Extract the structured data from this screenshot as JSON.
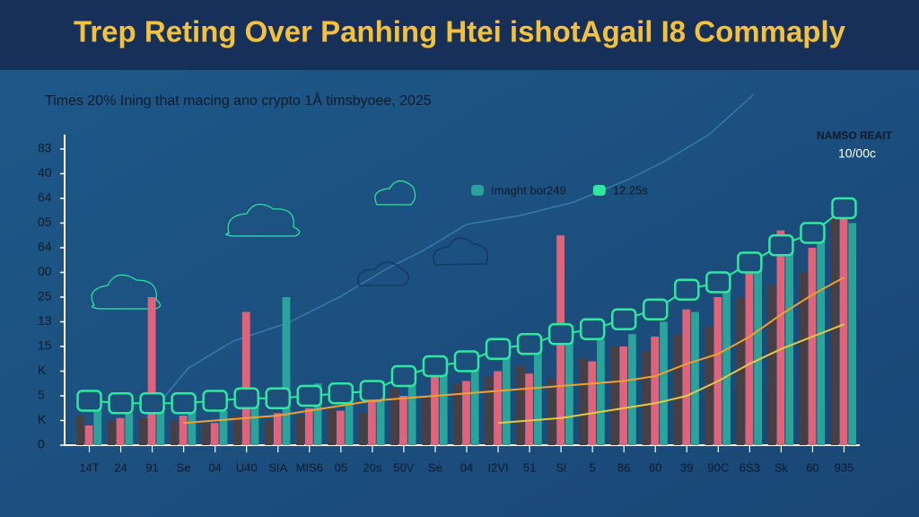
{
  "chart_data": {
    "type": "bar",
    "title": "Trep Reting Over Panhing Htei ishotAgail I8 Commaply",
    "subtitle": "Times 20%  Ining that macing ano crypto 1Å timsbyoee, 2025",
    "annotations": [
      "NAMSO REAIT",
      "10/00c"
    ],
    "categories": [
      "14T",
      "24",
      "91",
      "Se",
      "04",
      "U40",
      "SIA",
      "MIS6",
      "05",
      "20s",
      "50V",
      "Se",
      "04",
      "I2VI",
      "51",
      "Sl",
      "5",
      "86",
      "60",
      "39",
      "90C",
      "6S3",
      "Sk",
      "60",
      "935"
    ],
    "ylim": [
      0,
      12.4
    ],
    "yticks": [
      0,
      {
        "value": 1,
        "label": "K"
      },
      {
        "value": 2,
        "label": "5"
      },
      {
        "value": 3,
        "label": "K"
      },
      {
        "value": 4,
        "label": "15"
      },
      {
        "value": 5,
        "label": "13"
      },
      {
        "value": 6,
        "label": "25"
      },
      {
        "value": 7,
        "label": "00"
      },
      {
        "value": 8,
        "label": "64"
      },
      {
        "value": 9,
        "label": "05"
      },
      {
        "value": 10,
        "label": "64"
      },
      {
        "value": 11,
        "label": "40"
      },
      {
        "value": 12,
        "label": "83"
      }
    ],
    "grid": false,
    "series": [
      {
        "kind": "bar",
        "color": "#4a3f40",
        "values": [
          1.2,
          1.0,
          1.1,
          1.0,
          0.9,
          1.2,
          1.0,
          1.2,
          1.5,
          1.3,
          2.3,
          2.0,
          2.5,
          2.8,
          3.2,
          2.7,
          3.5,
          4.0,
          3.8,
          4.5,
          4.8,
          6.0,
          6.5,
          7.0,
          9.2
        ]
      },
      {
        "kind": "bar",
        "color": "#e0637a",
        "values": [
          0.8,
          1.1,
          6.0,
          1.2,
          0.9,
          5.4,
          1.3,
          1.5,
          1.4,
          2.6,
          2.0,
          3.1,
          2.6,
          3.0,
          2.9,
          8.5,
          3.4,
          4.0,
          4.4,
          5.5,
          6.0,
          7.0,
          8.7,
          8.0,
          9.6
        ]
      },
      {
        "kind": "bar",
        "name": "Imaght bor249",
        "color": "#2aa39a",
        "values": [
          1.5,
          1.3,
          1.5,
          1.6,
          1.4,
          1.6,
          6.0,
          2.5,
          2.2,
          2.6,
          2.8,
          3.0,
          3.4,
          3.8,
          4.2,
          4.6,
          4.3,
          4.5,
          5.0,
          5.4,
          6.4,
          7.2,
          8.2,
          8.6,
          9.0
        ]
      },
      {
        "kind": "box-line",
        "name": "12.25s",
        "color": "#2ee8a0",
        "values": [
          1.8,
          1.7,
          1.7,
          1.7,
          1.8,
          1.9,
          1.9,
          2.0,
          2.1,
          2.2,
          2.8,
          3.2,
          3.4,
          3.9,
          4.1,
          4.5,
          4.7,
          5.1,
          5.5,
          6.3,
          6.6,
          7.4,
          8.1,
          8.6,
          9.6
        ]
      },
      {
        "kind": "line",
        "color": "#f0a030",
        "values": [
          null,
          null,
          null,
          0.9,
          1.0,
          1.1,
          1.2,
          1.4,
          1.6,
          1.8,
          1.9,
          2.0,
          2.1,
          2.2,
          2.3,
          2.4,
          2.5,
          2.6,
          2.8,
          3.3,
          3.7,
          4.4,
          5.3,
          6.1,
          6.8
        ]
      },
      {
        "kind": "line",
        "color": "#e8c840",
        "values": [
          null,
          null,
          null,
          null,
          null,
          null,
          null,
          null,
          null,
          null,
          null,
          null,
          null,
          0.9,
          1.0,
          1.1,
          1.3,
          1.5,
          1.7,
          2.0,
          2.6,
          3.3,
          3.9,
          4.4,
          4.9
        ]
      }
    ]
  }
}
